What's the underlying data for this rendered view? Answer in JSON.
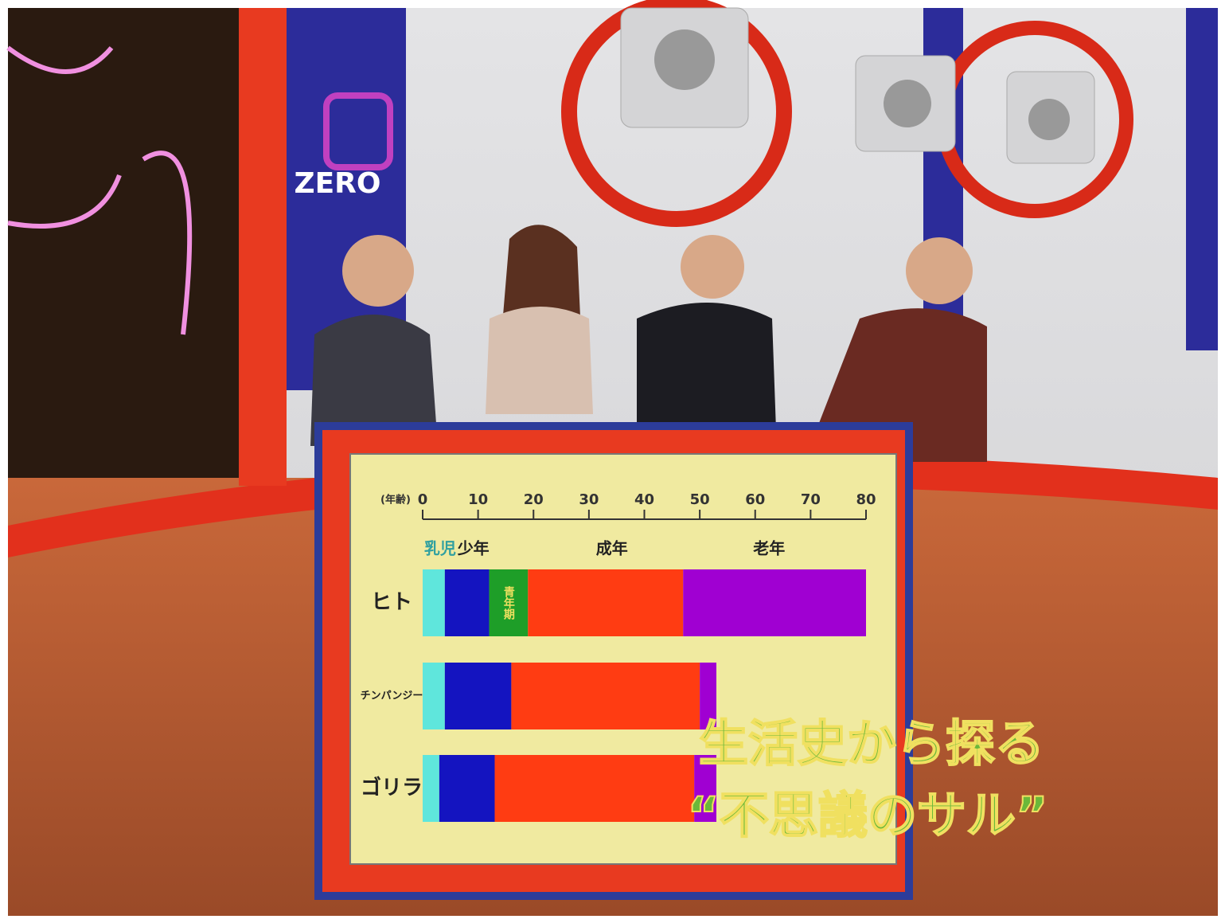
{
  "logo": "ZERO",
  "chart_data": {
    "type": "stacked-barh",
    "x_label": "(年齢)",
    "xlim": [
      0,
      80
    ],
    "xticks": [
      0,
      10,
      20,
      30,
      40,
      50,
      60,
      70,
      80
    ],
    "categories": [
      "ヒト",
      "チンパンジー",
      "ゴリラ"
    ],
    "series": [
      {
        "name": "乳児",
        "color": "#5fe6dc",
        "values": [
          4,
          4,
          3
        ]
      },
      {
        "name": "少年",
        "color": "#1414c0",
        "values": [
          8,
          12,
          10
        ]
      },
      {
        "name": "青年期",
        "color": "#1e9e28",
        "values": [
          7,
          null,
          null
        ]
      },
      {
        "name": "成年",
        "color": "#ff3c12",
        "values": [
          28,
          34,
          36
        ]
      },
      {
        "name": "老年",
        "color": "#a000d2",
        "values": [
          33,
          3,
          4
        ]
      }
    ],
    "caption": [
      "生活史から探る",
      "“不思議のサル”"
    ]
  }
}
